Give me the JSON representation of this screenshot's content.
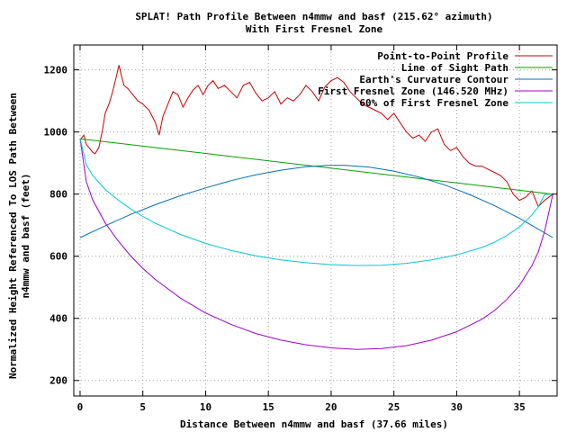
{
  "chart_data": {
    "type": "line",
    "title": "SPLAT! Path Profile Between n4mmw and basf (215.62° azimuth)",
    "subtitle": "With First Fresnel Zone",
    "xlabel": "Distance Between n4mmw and basf (37.66 miles)",
    "ylabel_line1": "Normalized Height Referenced To LOS Path Between",
    "ylabel_line2": "n4mmw and basf (feet)",
    "xlim": [
      -0.5,
      38.0
    ],
    "ylim": [
      150,
      1280
    ],
    "xticks": [
      0,
      5,
      10,
      15,
      20,
      25,
      30,
      35
    ],
    "yticks": [
      200,
      400,
      600,
      800,
      1000,
      1200
    ],
    "grid": true,
    "legend_position": "top-right",
    "series": [
      {
        "name": "Point-to-Point Profile",
        "color": "#cc0000",
        "x": [
          0.0,
          0.3,
          0.5,
          0.8,
          1.0,
          1.2,
          1.5,
          1.8,
          2.0,
          2.3,
          2.6,
          2.9,
          3.1,
          3.3,
          3.5,
          3.8,
          4.2,
          4.6,
          5.0,
          5.5,
          6.0,
          6.3,
          6.6,
          7.0,
          7.4,
          7.8,
          8.2,
          8.6,
          9.0,
          9.4,
          9.8,
          10.2,
          10.6,
          11.0,
          11.5,
          12.0,
          12.5,
          13.0,
          13.5,
          14.0,
          14.5,
          15.0,
          15.5,
          16.0,
          16.5,
          17.0,
          17.5,
          18.0,
          18.5,
          19.0,
          19.5,
          20.0,
          20.5,
          21.0,
          21.5,
          22.0,
          22.5,
          23.0,
          23.5,
          24.0,
          24.5,
          25.0,
          25.5,
          26.0,
          26.5,
          27.0,
          27.5,
          28.0,
          28.5,
          29.0,
          29.5,
          30.0,
          30.5,
          31.0,
          31.5,
          32.0,
          32.5,
          33.0,
          33.5,
          34.0,
          34.5,
          35.0,
          35.5,
          36.0,
          36.5,
          37.0,
          37.66
        ],
        "values": [
          975,
          990,
          960,
          945,
          935,
          930,
          950,
          1010,
          1060,
          1090,
          1130,
          1180,
          1215,
          1180,
          1150,
          1140,
          1120,
          1100,
          1090,
          1070,
          1030,
          990,
          1050,
          1090,
          1130,
          1120,
          1080,
          1110,
          1135,
          1150,
          1120,
          1150,
          1165,
          1140,
          1150,
          1130,
          1110,
          1150,
          1160,
          1125,
          1100,
          1110,
          1130,
          1090,
          1110,
          1100,
          1120,
          1150,
          1130,
          1100,
          1145,
          1165,
          1175,
          1160,
          1130,
          1110,
          1090,
          1080,
          1070,
          1060,
          1040,
          1060,
          1030,
          1000,
          980,
          990,
          970,
          1000,
          1010,
          960,
          940,
          950,
          920,
          900,
          890,
          890,
          880,
          870,
          860,
          840,
          800,
          780,
          790,
          810,
          760,
          780,
          800
        ]
      },
      {
        "name": "Line of Sight Path",
        "color": "#00a000",
        "x": [
          0.0,
          37.66
        ],
        "values": [
          978,
          800
        ]
      },
      {
        "name": "Earth's Curvature Contour",
        "color": "#0070c0",
        "x": [
          0.0,
          2.0,
          4.0,
          6.0,
          8.0,
          10.0,
          12.0,
          14.0,
          16.0,
          18.0,
          19.5,
          21.0,
          23.0,
          25.0,
          27.0,
          29.0,
          31.0,
          33.0,
          35.0,
          37.66
        ],
        "values": [
          660,
          698,
          734,
          766,
          795,
          820,
          843,
          862,
          877,
          888,
          892,
          893,
          887,
          874,
          855,
          830,
          799,
          763,
          722,
          660
        ]
      },
      {
        "name": "First Fresnel Zone (146.520 MHz)",
        "color": "#a000d0",
        "x": [
          0.0,
          0.5,
          1.0,
          2.0,
          3.0,
          4.0,
          5.0,
          6.0,
          8.0,
          10.0,
          12.0,
          14.0,
          16.0,
          18.0,
          20.0,
          22.0,
          24.0,
          26.0,
          28.0,
          30.0,
          32.0,
          33.0,
          34.0,
          35.0,
          36.0,
          36.5,
          37.0,
          37.66
        ],
        "values": [
          978,
          840,
          782,
          707,
          651,
          602,
          561,
          525,
          465,
          417,
          381,
          351,
          330,
          315,
          305,
          300,
          303,
          312,
          330,
          357,
          397,
          425,
          461,
          506,
          570,
          614,
          680,
          800
        ]
      },
      {
        "name": "60% of First Fresnel Zone",
        "color": "#00c8d8",
        "x": [
          0.0,
          0.5,
          1.0,
          2.0,
          3.0,
          4.0,
          5.0,
          6.0,
          8.0,
          10.0,
          12.0,
          14.0,
          16.0,
          18.0,
          20.0,
          22.0,
          24.0,
          26.0,
          28.0,
          30.0,
          32.0,
          33.0,
          34.0,
          35.0,
          36.0,
          36.5,
          37.0,
          37.66
        ],
        "values": [
          978,
          895,
          860,
          815,
          782,
          753,
          728,
          706,
          670,
          641,
          619,
          601,
          588,
          579,
          573,
          570,
          571,
          577,
          588,
          604,
          628,
          645,
          667,
          694,
          733,
          759,
          799,
          800
        ]
      }
    ]
  }
}
